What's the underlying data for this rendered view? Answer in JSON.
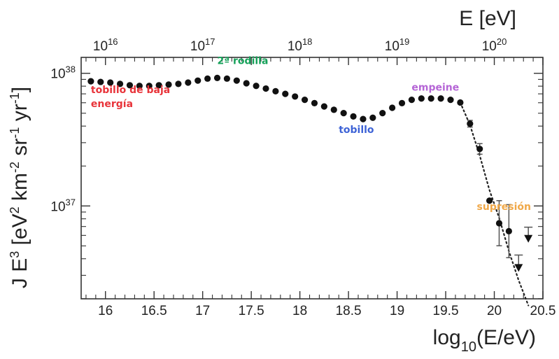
{
  "chart_data": {
    "type": "scatter",
    "title": "",
    "xlabel": "log10(E/eV)",
    "xlabel_main": "log",
    "xlabel_sub": "10",
    "xlabel_tail": "(E/eV)",
    "x2label": "E [eV]",
    "ylabel": "J E3 [eV2 km-2 sr-1 yr-1]",
    "ylabel_parts": {
      "j": "J E",
      "j_exp": "3",
      "open": " [eV",
      "ev_exp": "2",
      "km": " km",
      "km_exp": "-2",
      "sr": " sr",
      "sr_exp": "-1",
      "yr": " yr",
      "yr_exp": "-1",
      "close": "]"
    },
    "xlim": [
      15.75,
      20.5
    ],
    "ylim_log10": [
      36.3,
      38.12
    ],
    "x_ticks": [
      "16",
      "16.5",
      "17",
      "17.5",
      "18",
      "18.5",
      "19",
      "19.5",
      "20",
      "20.5"
    ],
    "x_tick_values": [
      16,
      16.5,
      17,
      17.5,
      18,
      18.5,
      19,
      19.5,
      20,
      20.5
    ],
    "top_ticks": [
      {
        "base": "10",
        "exp": "16",
        "value": 16
      },
      {
        "base": "10",
        "exp": "17",
        "value": 17
      },
      {
        "base": "10",
        "exp": "18",
        "value": 18
      },
      {
        "base": "10",
        "exp": "19",
        "value": 19
      },
      {
        "base": "10",
        "exp": "20",
        "value": 20
      }
    ],
    "y_ticks": [
      {
        "base": "10",
        "exp": "38",
        "value": 38
      },
      {
        "base": "10",
        "exp": "37",
        "value": 37
      }
    ],
    "series": [
      {
        "name": "measurements",
        "x": [
          15.85,
          15.95,
          16.05,
          16.15,
          16.25,
          16.35,
          16.45,
          16.55,
          16.65,
          16.75,
          16.85,
          16.95,
          17.05,
          17.15,
          17.25,
          17.35,
          17.45,
          17.55,
          17.65,
          17.75,
          17.85,
          17.95,
          18.05,
          18.15,
          18.25,
          18.35,
          18.45,
          18.55,
          18.65,
          18.75,
          18.85,
          18.95,
          19.05,
          19.15,
          19.25,
          19.35,
          19.45,
          19.55,
          19.65,
          19.75,
          19.85,
          19.95,
          20.05,
          20.15
        ],
        "log10_y": [
          37.94,
          37.935,
          37.93,
          37.92,
          37.91,
          37.905,
          37.905,
          37.91,
          37.915,
          37.92,
          37.93,
          37.945,
          37.96,
          37.965,
          37.96,
          37.945,
          37.925,
          37.905,
          37.885,
          37.865,
          37.845,
          37.825,
          37.8,
          37.775,
          37.75,
          37.725,
          37.7,
          37.675,
          37.655,
          37.665,
          37.7,
          37.74,
          37.775,
          37.8,
          37.81,
          37.81,
          37.81,
          37.8,
          37.78,
          37.62,
          37.43,
          37.04,
          36.87,
          36.81
        ],
        "err_log10": [
          0,
          0,
          0,
          0,
          0,
          0,
          0,
          0,
          0,
          0,
          0,
          0,
          0,
          0,
          0,
          0,
          0,
          0,
          0,
          0,
          0,
          0,
          0,
          0,
          0,
          0,
          0,
          0,
          0,
          0,
          0,
          0,
          0,
          0,
          0,
          0,
          0,
          0,
          0,
          0.025,
          0.04,
          0.0,
          0.17,
          0.2
        ]
      },
      {
        "name": "upper-limits",
        "x": [
          20.25,
          20.35
        ],
        "log10_y": [
          36.53,
          36.75
        ],
        "bar_top_log10": [
          36.63,
          36.84
        ]
      },
      {
        "name": "fit",
        "x": [
          19.65,
          19.75,
          19.85,
          19.95,
          20.05,
          20.15,
          20.25,
          20.35
        ],
        "log10_y": [
          37.78,
          37.61,
          37.38,
          37.12,
          36.91,
          36.66,
          36.44,
          36.25
        ]
      }
    ],
    "annotations": [
      {
        "id": "second-knee",
        "text": "2ª rodilla",
        "color": "#17a15a",
        "x": 17.15,
        "log10_y": 38.07
      },
      {
        "id": "low-energy-ankle",
        "line1": "tobillo de baja",
        "line2": "energía",
        "color": "#e8343a",
        "x": 15.85,
        "log10_y": 37.85
      },
      {
        "id": "ankle",
        "text": "tobillo",
        "color": "#3e63d6",
        "x": 18.4,
        "log10_y": 37.55
      },
      {
        "id": "instep",
        "text": "empeine",
        "color": "#b565d6",
        "x": 19.15,
        "log10_y": 37.87
      },
      {
        "id": "suppression",
        "text": "supresión",
        "color": "#f0a848",
        "x": 19.82,
        "log10_y": 36.97
      }
    ],
    "grid": false
  }
}
